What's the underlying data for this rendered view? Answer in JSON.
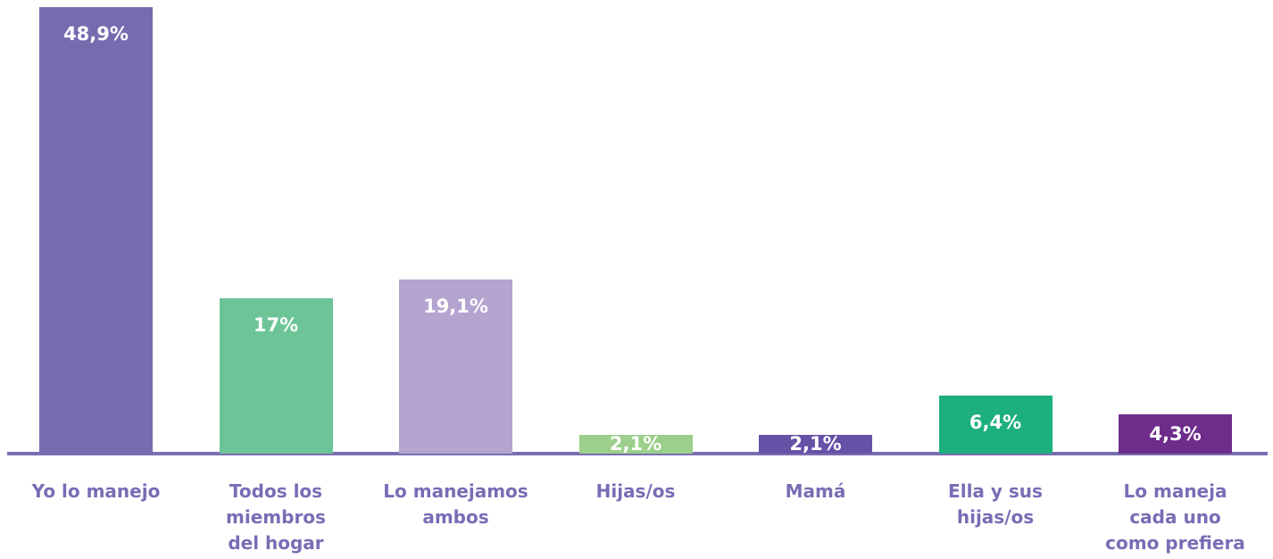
{
  "chart_data": {
    "type": "bar",
    "categories": [
      "Yo lo manejo",
      "Todos los\nmiembros\ndel hogar",
      "Lo manejamos\nambos",
      "Hijas/os",
      "Mamá",
      "Ella y sus\nhijas/os",
      "Lo maneja\ncada uno\ncomo prefiera"
    ],
    "values": [
      48.9,
      17,
      19.1,
      2.1,
      2.1,
      6.4,
      4.3
    ],
    "value_labels": [
      "48,9%",
      "17%",
      "19,1%",
      "2,1%",
      "2,1%",
      "6,4%",
      "4,3%"
    ],
    "colors": [
      "#776bb0",
      "#6dc597",
      "#b4a4cf",
      "#9bcf8b",
      "#6552a6",
      "#1db07c",
      "#6e2d8b"
    ]
  }
}
